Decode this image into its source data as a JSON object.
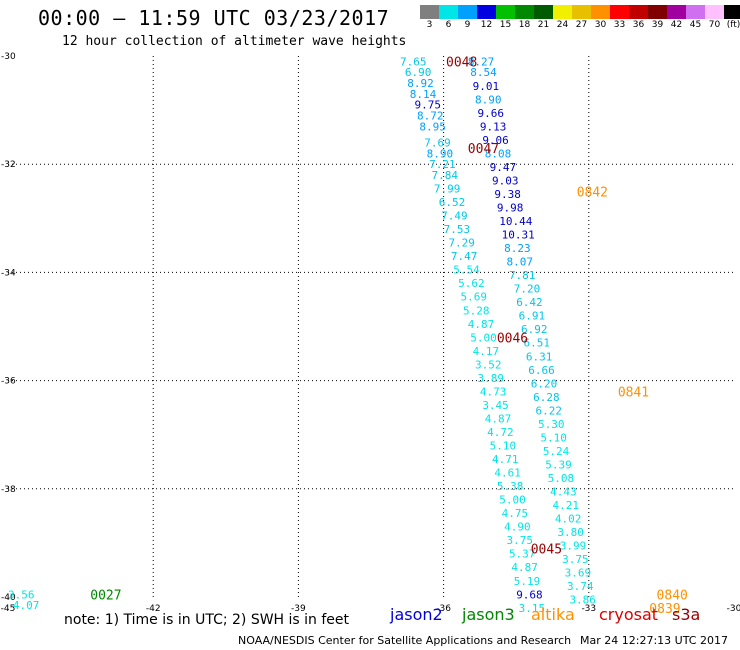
{
  "title": "00:00 – 11:59 UTC 03/23/2017",
  "subtitle": "12 hour collection of altimeter wave heights",
  "color_scale": {
    "labels": [
      "3",
      "6",
      "9",
      "12",
      "15",
      "18",
      "21",
      "24",
      "27",
      "30",
      "33",
      "36",
      "39",
      "42",
      "45",
      "70",
      "(ft)"
    ],
    "colors": [
      "#7f7f7f",
      "#00e5e5",
      "#00a0ff",
      "#0000e0",
      "#00c000",
      "#008800",
      "#005a00",
      "#f0f000",
      "#e8c000",
      "#ff9000",
      "#ff0000",
      "#c00000",
      "#800000",
      "#a000a0",
      "#d070f0",
      "#ffc0ff",
      "#000000"
    ]
  },
  "note": "note: 1) Time is in UTC; 2) SWH is in feet",
  "credit": "NOAA/NESDIS Center for Satellite Applications and Research",
  "timestamp": "Mar 24 12:27:13 UTC 2017",
  "legend": [
    {
      "name": "jason2",
      "color": "#0000dd"
    },
    {
      "name": "jason3",
      "color": "#008800"
    },
    {
      "name": "altika",
      "color": "#ff9000"
    },
    {
      "name": "cryosat",
      "color": "#dd0000"
    },
    {
      "name": "s3a",
      "color": "#990000"
    }
  ],
  "chart_data": {
    "type": "scatter",
    "xlim": [
      -45,
      -30
    ],
    "ylim": [
      -40,
      -30
    ],
    "xticks": [
      -45,
      -42,
      -39,
      -36,
      -33,
      -30
    ],
    "yticks": [
      -30,
      -32,
      -34,
      -36,
      -38,
      -40
    ],
    "xtick_labels": [
      "-45",
      "-42",
      "-39",
      "-36",
      "-33",
      "-30"
    ],
    "ytick_labels": [
      "-30",
      "-32",
      "-34",
      "-36",
      "-38",
      "-40"
    ],
    "grid": true,
    "track_a": [
      {
        "x": -36.9,
        "y": -30.1,
        "v": "7.65",
        "c": "#00c8e8"
      },
      {
        "x": -36.8,
        "y": -30.3,
        "v": "6.90",
        "c": "#00c8e8"
      },
      {
        "x": -36.75,
        "y": -30.5,
        "v": "8.92",
        "c": "#00a0ff"
      },
      {
        "x": -36.7,
        "y": -30.7,
        "v": "8.14",
        "c": "#00a0ff"
      },
      {
        "x": -36.6,
        "y": -30.9,
        "v": "9.75",
        "c": "#0000cc"
      },
      {
        "x": -36.55,
        "y": -31.1,
        "v": "8.72",
        "c": "#00a0ff"
      },
      {
        "x": -36.5,
        "y": -31.3,
        "v": "8.95",
        "c": "#00a0ff"
      },
      {
        "x": -36.4,
        "y": -31.6,
        "v": "7.69",
        "c": "#00c8e8"
      },
      {
        "x": -36.35,
        "y": -31.8,
        "v": "8.90",
        "c": "#00a0ff"
      },
      {
        "x": -36.3,
        "y": -32.0,
        "v": "7.21",
        "c": "#00c8e8"
      },
      {
        "x": -36.25,
        "y": -32.2,
        "v": "7.84",
        "c": "#00c8e8"
      },
      {
        "x": -36.2,
        "y": -32.45,
        "v": "7.99",
        "c": "#00c8e8"
      },
      {
        "x": -36.1,
        "y": -32.7,
        "v": "6.52",
        "c": "#00c8e8"
      },
      {
        "x": -36.05,
        "y": -32.95,
        "v": "7.49",
        "c": "#00c8e8"
      },
      {
        "x": -36.0,
        "y": -33.2,
        "v": "7.53",
        "c": "#00c8e8"
      },
      {
        "x": -35.9,
        "y": -33.45,
        "v": "7.29",
        "c": "#00c8e8"
      },
      {
        "x": -35.85,
        "y": -33.7,
        "v": "7.47",
        "c": "#00c8e8"
      },
      {
        "x": -35.8,
        "y": -33.95,
        "v": "5.54",
        "c": "#00e5e5"
      },
      {
        "x": -35.7,
        "y": -34.2,
        "v": "5.62",
        "c": "#00e5e5"
      },
      {
        "x": -35.65,
        "y": -34.45,
        "v": "5.69",
        "c": "#00e5e5"
      },
      {
        "x": -35.6,
        "y": -34.7,
        "v": "5.28",
        "c": "#00e5e5"
      },
      {
        "x": -35.5,
        "y": -34.95,
        "v": "4.87",
        "c": "#00e5e5"
      },
      {
        "x": -35.45,
        "y": -35.2,
        "v": "5.00",
        "c": "#00e5e5"
      },
      {
        "x": -35.4,
        "y": -35.45,
        "v": "4.17",
        "c": "#00e5e5"
      },
      {
        "x": -35.35,
        "y": -35.7,
        "v": "3.52",
        "c": "#00e5e5"
      },
      {
        "x": -35.3,
        "y": -35.95,
        "v": "3.89",
        "c": "#00e5e5"
      },
      {
        "x": -35.25,
        "y": -36.2,
        "v": "4.73",
        "c": "#00e5e5"
      },
      {
        "x": -35.2,
        "y": -36.45,
        "v": "3.45",
        "c": "#00e5e5"
      },
      {
        "x": -35.15,
        "y": -36.7,
        "v": "4.87",
        "c": "#00e5e5"
      },
      {
        "x": -35.1,
        "y": -36.95,
        "v": "4.72",
        "c": "#00e5e5"
      },
      {
        "x": -35.05,
        "y": -37.2,
        "v": "5.10",
        "c": "#00e5e5"
      },
      {
        "x": -35.0,
        "y": -37.45,
        "v": "4.71",
        "c": "#00e5e5"
      },
      {
        "x": -34.95,
        "y": -37.7,
        "v": "4.61",
        "c": "#00e5e5"
      },
      {
        "x": -34.9,
        "y": -37.95,
        "v": "5.38",
        "c": "#00e5e5"
      },
      {
        "x": -34.85,
        "y": -38.2,
        "v": "5.00",
        "c": "#00e5e5"
      },
      {
        "x": -34.8,
        "y": -38.45,
        "v": "4.75",
        "c": "#00e5e5"
      },
      {
        "x": -34.75,
        "y": -38.7,
        "v": "4.90",
        "c": "#00e5e5"
      },
      {
        "x": -34.7,
        "y": -38.95,
        "v": "3.75",
        "c": "#00e5e5"
      },
      {
        "x": -34.65,
        "y": -39.2,
        "v": "5.37",
        "c": "#00e5e5"
      },
      {
        "x": -34.6,
        "y": -39.45,
        "v": "4.87",
        "c": "#00e5e5"
      },
      {
        "x": -34.55,
        "y": -39.7,
        "v": "5.19",
        "c": "#00e5e5"
      },
      {
        "x": -34.5,
        "y": -39.95,
        "v": "9.68",
        "c": "#0000cc"
      },
      {
        "x": -34.45,
        "y": -40.2,
        "v": "3.15",
        "c": "#00e5e5"
      }
    ],
    "track_b": [
      {
        "x": -35.5,
        "y": -30.1,
        "v": "8.27",
        "c": "#00a0ff"
      },
      {
        "x": -35.45,
        "y": -30.3,
        "v": "8.54",
        "c": "#00a0ff"
      },
      {
        "x": -35.4,
        "y": -30.55,
        "v": "9.01",
        "c": "#0000cc"
      },
      {
        "x": -35.35,
        "y": -30.8,
        "v": "8.90",
        "c": "#00a0ff"
      },
      {
        "x": -35.3,
        "y": -31.05,
        "v": "9.66",
        "c": "#0000cc"
      },
      {
        "x": -35.25,
        "y": -31.3,
        "v": "9.13",
        "c": "#0000cc"
      },
      {
        "x": -35.2,
        "y": -31.55,
        "v": "9.06",
        "c": "#0000cc"
      },
      {
        "x": -35.15,
        "y": -31.8,
        "v": "8.08",
        "c": "#00a0ff"
      },
      {
        "x": -35.05,
        "y": -32.05,
        "v": "9.47",
        "c": "#0000cc"
      },
      {
        "x": -35.0,
        "y": -32.3,
        "v": "9.03",
        "c": "#0000cc"
      },
      {
        "x": -34.95,
        "y": -32.55,
        "v": "9.38",
        "c": "#0000cc"
      },
      {
        "x": -34.9,
        "y": -32.8,
        "v": "9.98",
        "c": "#0000cc"
      },
      {
        "x": -34.85,
        "y": -33.05,
        "v": "10.44",
        "c": "#0000cc"
      },
      {
        "x": -34.8,
        "y": -33.3,
        "v": "10.31",
        "c": "#0000cc"
      },
      {
        "x": -34.75,
        "y": -33.55,
        "v": "8.23",
        "c": "#00a0ff"
      },
      {
        "x": -34.7,
        "y": -33.8,
        "v": "8.07",
        "c": "#00a0ff"
      },
      {
        "x": -34.65,
        "y": -34.05,
        "v": "7.81",
        "c": "#00c8e8"
      },
      {
        "x": -34.55,
        "y": -34.3,
        "v": "7.20",
        "c": "#00c8e8"
      },
      {
        "x": -34.5,
        "y": -34.55,
        "v": "6.42",
        "c": "#00c8e8"
      },
      {
        "x": -34.45,
        "y": -34.8,
        "v": "6.91",
        "c": "#00c8e8"
      },
      {
        "x": -34.4,
        "y": -35.05,
        "v": "6.92",
        "c": "#00c8e8"
      },
      {
        "x": -34.35,
        "y": -35.3,
        "v": "6.51",
        "c": "#00c8e8"
      },
      {
        "x": -34.3,
        "y": -35.55,
        "v": "6.31",
        "c": "#00c8e8"
      },
      {
        "x": -34.25,
        "y": -35.8,
        "v": "6.66",
        "c": "#00c8e8"
      },
      {
        "x": -34.2,
        "y": -36.05,
        "v": "6.20",
        "c": "#00c8e8"
      },
      {
        "x": -34.15,
        "y": -36.3,
        "v": "6.28",
        "c": "#00c8e8"
      },
      {
        "x": -34.1,
        "y": -36.55,
        "v": "6.22",
        "c": "#00c8e8"
      },
      {
        "x": -34.05,
        "y": -36.8,
        "v": "5.30",
        "c": "#00e5e5"
      },
      {
        "x": -34.0,
        "y": -37.05,
        "v": "5.10",
        "c": "#00e5e5"
      },
      {
        "x": -33.95,
        "y": -37.3,
        "v": "5.24",
        "c": "#00e5e5"
      },
      {
        "x": -33.9,
        "y": -37.55,
        "v": "5.39",
        "c": "#00e5e5"
      },
      {
        "x": -33.85,
        "y": -37.8,
        "v": "5.08",
        "c": "#00e5e5"
      },
      {
        "x": -33.8,
        "y": -38.05,
        "v": "4.43",
        "c": "#00e5e5"
      },
      {
        "x": -33.75,
        "y": -38.3,
        "v": "4.21",
        "c": "#00e5e5"
      },
      {
        "x": -33.7,
        "y": -38.55,
        "v": "4.02",
        "c": "#00e5e5"
      },
      {
        "x": -33.65,
        "y": -38.8,
        "v": "3.80",
        "c": "#00e5e5"
      },
      {
        "x": -33.6,
        "y": -39.05,
        "v": "3.99",
        "c": "#00e5e5"
      },
      {
        "x": -33.55,
        "y": -39.3,
        "v": "3.75",
        "c": "#00e5e5"
      },
      {
        "x": -33.5,
        "y": -39.55,
        "v": "3.69",
        "c": "#00e5e5"
      },
      {
        "x": -33.45,
        "y": -39.8,
        "v": "3.74",
        "c": "#00e5e5"
      },
      {
        "x": -33.4,
        "y": -40.05,
        "v": "3.86",
        "c": "#00e5e5"
      }
    ],
    "track_c": [
      {
        "x": -45.0,
        "y": -39.95,
        "v": "3.56",
        "c": "#00e5e5"
      },
      {
        "x": -44.9,
        "y": -40.15,
        "v": "4.07",
        "c": "#00e5e5"
      }
    ],
    "time_labels": [
      {
        "x": -35.95,
        "y": -30.1,
        "t": "0048",
        "c": "#990000"
      },
      {
        "x": -35.5,
        "y": -31.7,
        "t": "0047",
        "c": "#990000"
      },
      {
        "x": -34.9,
        "y": -35.2,
        "t": "0046",
        "c": "#990000"
      },
      {
        "x": -34.2,
        "y": -39.1,
        "t": "0045",
        "c": "#990000"
      },
      {
        "x": -43.3,
        "y": -39.95,
        "t": "0027",
        "c": "#008800"
      },
      {
        "x": -33.25,
        "y": -32.5,
        "t": "0842",
        "c": "#ff9000"
      },
      {
        "x": -32.4,
        "y": -36.2,
        "t": "0841",
        "c": "#ff9000"
      },
      {
        "x": -31.6,
        "y": -39.95,
        "t": "0840",
        "c": "#ff9000"
      },
      {
        "x": -31.75,
        "y": -40.2,
        "t": "0839",
        "c": "#ff9000"
      }
    ]
  }
}
